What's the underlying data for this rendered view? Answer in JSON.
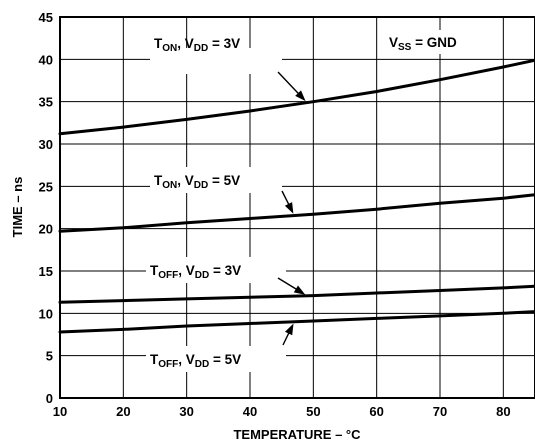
{
  "chart_data": {
    "type": "line",
    "title": "",
    "xlabel": "TEMPERATURE – °C",
    "ylabel": "TIME – ns",
    "xlim": [
      10,
      85
    ],
    "ylim": [
      0,
      45
    ],
    "x_ticks": [
      10,
      20,
      30,
      40,
      50,
      60,
      70,
      80
    ],
    "y_ticks": [
      0,
      5,
      10,
      15,
      20,
      25,
      30,
      35,
      40,
      45
    ],
    "grid": true,
    "legend": "none",
    "condition": {
      "main": "V",
      "sub": "SS",
      "rest": " = GND"
    },
    "series": [
      {
        "label": {
          "t_sub": "ON",
          "v_sub": "DD",
          "value": " = 3V"
        },
        "x": [
          10,
          20,
          30,
          40,
          50,
          60,
          70,
          80,
          85
        ],
        "y": [
          31.2,
          32.0,
          32.9,
          33.9,
          35.0,
          36.2,
          37.6,
          39.1,
          39.9
        ]
      },
      {
        "label": {
          "t_sub": "ON",
          "v_sub": "DD",
          "value": " = 5V"
        },
        "x": [
          10,
          20,
          30,
          40,
          50,
          60,
          70,
          80,
          85
        ],
        "y": [
          19.7,
          20.1,
          20.7,
          21.2,
          21.7,
          22.3,
          23.0,
          23.6,
          24.0
        ]
      },
      {
        "label": {
          "t_sub": "OFF",
          "v_sub": "DD",
          "value": " = 3V"
        },
        "x": [
          10,
          20,
          30,
          40,
          50,
          60,
          70,
          80,
          85
        ],
        "y": [
          11.3,
          11.5,
          11.7,
          11.9,
          12.1,
          12.4,
          12.7,
          13.0,
          13.2
        ]
      },
      {
        "label": {
          "t_sub": "OFF",
          "v_sub": "DD",
          "value": " = 5V"
        },
        "x": [
          10,
          20,
          30,
          40,
          50,
          60,
          70,
          80,
          85
        ],
        "y": [
          7.8,
          8.1,
          8.5,
          8.8,
          9.1,
          9.4,
          9.7,
          10.0,
          10.2
        ]
      }
    ]
  }
}
